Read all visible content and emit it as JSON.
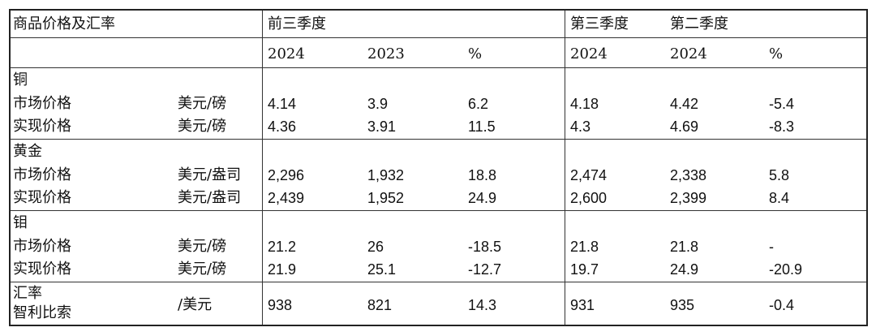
{
  "header": {
    "title": "商品价格及汇率",
    "group_ytd": "前三季度",
    "group_q3": "第三季度",
    "group_q2": "第二季度",
    "col_ytd_2024": "2024",
    "col_ytd_2023": "2023",
    "col_ytd_pct": "%",
    "col_q3_2024": "2024",
    "col_q2_2024": "2024",
    "col_q_pct": "%"
  },
  "copper": {
    "name": "铜",
    "market": {
      "label": "市场价格",
      "unit": "美元/磅",
      "v": [
        "4.14",
        "3.9",
        "6.2",
        "4.18",
        "4.42",
        "-5.4"
      ]
    },
    "realized": {
      "label": "实现价格",
      "unit": "美元/磅",
      "v": [
        "4.36",
        "3.91",
        "11.5",
        "4.3",
        "4.69",
        "-8.3"
      ]
    }
  },
  "gold": {
    "name": "黄金",
    "market": {
      "label": "市场价格",
      "unit": "美元/盎司",
      "v": [
        "2,296",
        "1,932",
        "18.8",
        "2,474",
        "2,338",
        "5.8"
      ]
    },
    "realized": {
      "label": "实现价格",
      "unit": "美元/盎司",
      "v": [
        "2,439",
        "1,952",
        "24.9",
        "2,600",
        "2,399",
        "8.4"
      ]
    }
  },
  "molybdenum": {
    "name": "钼",
    "market": {
      "label": "市场价格",
      "unit": "美元/磅",
      "v": [
        "21.2",
        "26",
        "-18.5",
        "21.8",
        "21.8",
        "-"
      ]
    },
    "realized": {
      "label": "实现价格",
      "unit": "美元/磅",
      "v": [
        "21.9",
        "25.1",
        "-12.7",
        "19.7",
        "24.9",
        "-20.9"
      ]
    }
  },
  "fx": {
    "name": "汇率",
    "label": "智利比索",
    "unit": "/美元",
    "v": [
      "938",
      "821",
      "14.3",
      "931",
      "935",
      "-0.4"
    ]
  }
}
